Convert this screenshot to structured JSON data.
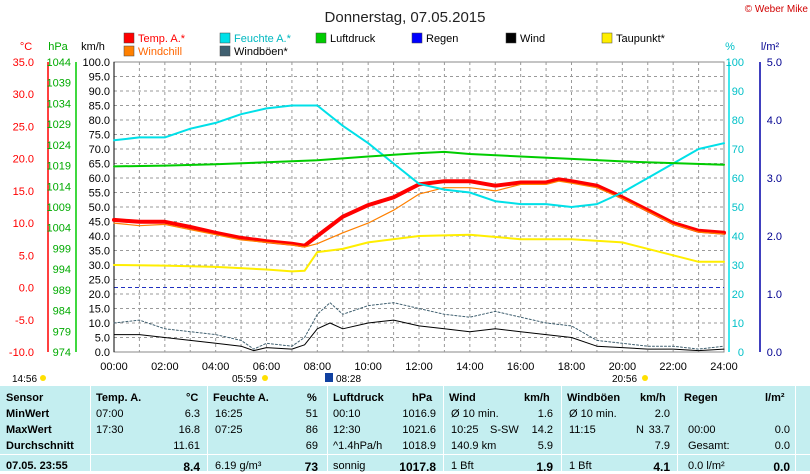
{
  "title": "Donnerstag, 07.05.2015",
  "copyright": "© Weber Mike",
  "legend": [
    {
      "label": "Temp. A.*",
      "color": "#ff0000"
    },
    {
      "label": "Feuchte A.*",
      "color": "#00e0e8"
    },
    {
      "label": "Luftdruck",
      "color": "#00cc00"
    },
    {
      "label": "Regen",
      "color": "#0000ff"
    },
    {
      "label": "Wind",
      "color": "#000000"
    },
    {
      "label": "Taupunkt*",
      "color": "#ffee00"
    },
    {
      "label": "Windchill",
      "color": "#ff8000"
    },
    {
      "label": "Windböen*",
      "color": "#406070"
    }
  ],
  "axis_units": {
    "temp": "°C",
    "press": "hPa",
    "wind": "km/h",
    "hum": "%",
    "rain": "l/m²"
  },
  "axes": {
    "temp_ticks": [
      "35.0",
      "30.0",
      "25.0",
      "20.0",
      "15.0",
      "10.0",
      "5.0",
      "0.0",
      "-5.0",
      "-10.0"
    ],
    "press_ticks": [
      "1044",
      "1039",
      "1034",
      "1029",
      "1024",
      "1019",
      "1014",
      "1009",
      "1004",
      "999",
      "994",
      "989",
      "984",
      "979",
      "974"
    ],
    "wind_ticks": [
      "100.0",
      "95.0",
      "90.0",
      "85.0",
      "80.0",
      "75.0",
      "70.0",
      "65.0",
      "60.0",
      "55.0",
      "50.0",
      "45.0",
      "40.0",
      "35.0",
      "30.0",
      "25.0",
      "20.0",
      "15.0",
      "10.0",
      "5.0",
      "0.0"
    ],
    "hum_ticks": [
      "100",
      "90",
      "80",
      "70",
      "60",
      "50",
      "40",
      "30",
      "20",
      "10",
      "0"
    ],
    "rain_ticks": [
      "5.0",
      "4.0",
      "3.0",
      "2.0",
      "1.0",
      "0.0"
    ],
    "x_ticks": [
      "00:00",
      "02:00",
      "04:00",
      "06:00",
      "08:00",
      "10:00",
      "12:00",
      "14:00",
      "16:00",
      "18:00",
      "20:00",
      "22:00",
      "24:00"
    ]
  },
  "sun_markers": {
    "left": "14:56",
    "sunrise": "05:59",
    "moon": "08:28",
    "sunset": "20:56"
  },
  "chart_data": {
    "type": "line",
    "x_range": [
      "00:00",
      "24:00"
    ],
    "series": [
      {
        "name": "Temp. A.*",
        "axis": "temp",
        "color": "#ff0000",
        "x": [
          0,
          1,
          2,
          3,
          4,
          5,
          6,
          7,
          7.5,
          8,
          9,
          10,
          11,
          12,
          13,
          14,
          15,
          16,
          17,
          17.5,
          18,
          19,
          20,
          21,
          22,
          23,
          24
        ],
        "y": [
          10.5,
          10.2,
          10.2,
          9.4,
          8.5,
          7.7,
          7.2,
          6.8,
          6.5,
          8.0,
          11.0,
          12.8,
          14.0,
          16.0,
          16.5,
          16.5,
          15.8,
          16.3,
          16.3,
          16.8,
          16.5,
          15.8,
          14.0,
          12.0,
          10.0,
          8.8,
          8.5
        ]
      },
      {
        "name": "Windchill",
        "axis": "temp",
        "color": "#ff8000",
        "x": [
          0,
          1,
          2,
          3,
          4,
          5,
          6,
          7,
          7.5,
          8,
          9,
          10,
          11,
          12,
          13,
          14,
          15,
          16,
          17,
          17.5,
          18,
          19,
          20,
          21,
          22,
          23,
          24
        ],
        "y": [
          10.0,
          9.6,
          9.8,
          9.0,
          8.2,
          7.4,
          7.0,
          6.6,
          6.3,
          6.8,
          8.5,
          10.0,
          12.0,
          14.5,
          15.5,
          15.5,
          15.0,
          16.0,
          16.0,
          16.5,
          16.2,
          15.5,
          13.8,
          11.8,
          9.8,
          8.6,
          8.3
        ]
      },
      {
        "name": "Taupunkt*",
        "axis": "temp",
        "color": "#ffee00",
        "x": [
          0,
          2,
          4,
          6,
          7,
          7.5,
          8,
          9,
          10,
          12,
          14,
          16,
          18,
          20,
          22,
          23,
          24
        ],
        "y": [
          3.5,
          3.4,
          3.2,
          2.8,
          2.5,
          2.6,
          5.5,
          6.0,
          7.0,
          8.0,
          8.2,
          7.5,
          7.5,
          7.0,
          5.0,
          4.0,
          4.0
        ]
      },
      {
        "name": "Feuchte A.*",
        "axis": "hum",
        "color": "#00e0e8",
        "x": [
          0,
          1,
          2,
          3,
          4,
          5,
          6,
          7,
          8,
          9,
          10,
          11,
          12,
          13,
          14,
          15,
          16,
          17,
          18,
          19,
          20,
          21,
          22,
          23,
          24
        ],
        "y": [
          73,
          74,
          74,
          77,
          79,
          82,
          84,
          85,
          85,
          78,
          72,
          65,
          58,
          56,
          55,
          52,
          51,
          51,
          50,
          51,
          55,
          60,
          65,
          70,
          72
        ]
      },
      {
        "name": "Luftdruck",
        "axis": "press",
        "color": "#00cc00",
        "x": [
          0,
          2,
          4,
          6,
          8,
          10,
          11,
          12,
          13,
          14,
          16,
          18,
          20,
          22,
          24
        ],
        "y": [
          1018.8,
          1019.0,
          1019.3,
          1019.8,
          1020.3,
          1021.2,
          1021.6,
          1022.0,
          1022.3,
          1021.8,
          1021.2,
          1020.6,
          1020.0,
          1019.6,
          1019.2
        ]
      },
      {
        "name": "Windböen*",
        "axis": "wind",
        "color": "#406070",
        "x": [
          0,
          1,
          2,
          3,
          4,
          5,
          5.5,
          6,
          7,
          7.5,
          8,
          8.5,
          9,
          10,
          11,
          12,
          13,
          14,
          15,
          16,
          17,
          18,
          19,
          20,
          21,
          22,
          23,
          24
        ],
        "y": [
          10,
          11,
          8,
          7,
          6,
          4,
          1,
          3,
          2,
          5,
          13,
          17,
          13,
          16,
          17,
          15,
          13,
          12,
          14,
          12,
          10,
          9,
          4,
          3,
          2,
          2,
          1,
          2
        ]
      },
      {
        "name": "Wind",
        "axis": "wind",
        "color": "#000000",
        "x": [
          0,
          1,
          2,
          3,
          4,
          5,
          5.5,
          6,
          7,
          7.5,
          8,
          8.5,
          9,
          10,
          11,
          12,
          13,
          14,
          15,
          16,
          17,
          18,
          19,
          20,
          21,
          22,
          23,
          24
        ],
        "y": [
          6,
          6,
          5,
          4,
          3,
          2,
          0.5,
          1.5,
          1,
          2.5,
          8,
          10,
          8,
          10,
          11,
          9,
          8,
          7,
          8,
          7,
          6,
          5,
          2,
          1.5,
          1,
          1,
          0.5,
          1
        ]
      }
    ]
  },
  "table": {
    "headers": {
      "sensor": "Sensor",
      "temp": "Temp. A.",
      "temp_unit": "°C",
      "hum": "Feuchte A.",
      "hum_unit": "%",
      "press": "Luftdruck",
      "press_unit": "hPa",
      "wind": "Wind",
      "wind_unit": "km/h",
      "gust": "Windböen",
      "gust_unit": "km/h",
      "rain": "Regen",
      "rain_unit": "l/m²"
    },
    "rows": [
      {
        "label": "MinWert",
        "t_time": "07:00",
        "t_val": "6.3",
        "h_time": "16:25",
        "h_val": "51",
        "p_time": "00:10",
        "p_val": "1016.9",
        "w_time": "Ø 10 min.",
        "w_dir": "",
        "w_val": "1.6",
        "g_time": "Ø 10 min.",
        "g_dir": "",
        "g_val": "2.0",
        "r_time": "",
        "r_val": ""
      },
      {
        "label": "MaxWert",
        "t_time": "17:30",
        "t_val": "16.8",
        "h_time": "07:25",
        "h_val": "86",
        "p_time": "12:30",
        "p_val": "1021.6",
        "w_time": "10:25",
        "w_dir": "S-SW",
        "w_val": "14.2",
        "g_time": "11:15",
        "g_dir": "N",
        "g_val": "33.7",
        "r_time": "00:00",
        "r_val": "0.0"
      },
      {
        "label": "Durchschnitt",
        "t_time": "",
        "t_val": "11.61",
        "h_time": "",
        "h_val": "69",
        "p_time": "^1.4hPa/h",
        "p_val": "1018.9",
        "w_time": "140.9 km",
        "w_dir": "",
        "w_val": "5.9",
        "g_time": "",
        "g_dir": "",
        "g_val": "7.9",
        "r_time": "Gesamt:",
        "r_val": "0.0"
      },
      {
        "label": "07.05. 23:55",
        "t_time": "",
        "t_val": "8.4",
        "h_time": "6.19 g/m³",
        "h_val": "73",
        "p_time": "sonnig",
        "p_val": "1017.8",
        "w_time": "1 Bft",
        "w_dir": "",
        "w_val": "1.9",
        "g_time": "1 Bft",
        "g_dir": "",
        "g_val": "4.1",
        "r_time": "0.0 l/m²",
        "r_val": "0.0"
      }
    ]
  }
}
